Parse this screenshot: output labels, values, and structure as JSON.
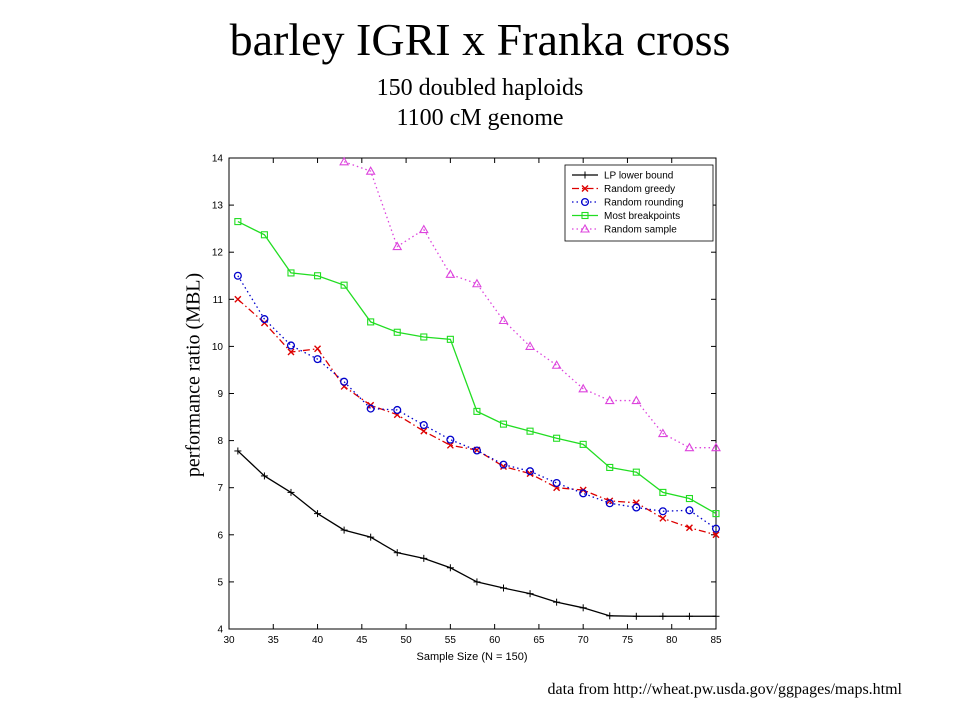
{
  "chart_data": {
    "type": "line",
    "title": "barley IGRI x Franka cross",
    "subtitles": [
      "150 doubled haploids",
      "1100 cM genome"
    ],
    "xlabel": "Sample Size (N = 150)",
    "ylabel": "performance ratio (MBL)",
    "xlim": [
      30,
      85
    ],
    "ylim": [
      4,
      14
    ],
    "xticks": [
      30,
      35,
      40,
      45,
      50,
      55,
      60,
      65,
      70,
      75,
      80,
      85
    ],
    "yticks": [
      4,
      5,
      6,
      7,
      8,
      9,
      10,
      11,
      12,
      13,
      14
    ],
    "legend_position": "top-right",
    "grid": false,
    "series": [
      {
        "name": "LP lower bound",
        "color": "#000000",
        "marker": "plus",
        "line_style": "solid",
        "x": [
          31,
          34,
          37,
          40,
          43,
          46,
          49,
          52,
          55,
          58,
          61,
          64,
          67,
          70,
          73,
          76,
          79,
          82,
          85
        ],
        "y": [
          7.78,
          7.25,
          6.9,
          6.45,
          6.1,
          5.95,
          5.62,
          5.5,
          5.3,
          5.0,
          4.87,
          4.75,
          4.57,
          4.45,
          4.28,
          4.27,
          4.27,
          4.27,
          4.27
        ]
      },
      {
        "name": "Random greedy",
        "color": "#dd0000",
        "marker": "x",
        "line_style": "dashdot",
        "x": [
          31,
          34,
          37,
          40,
          43,
          46,
          49,
          52,
          55,
          58,
          61,
          64,
          67,
          70,
          73,
          76,
          79,
          82,
          85
        ],
        "y": [
          11.0,
          10.5,
          9.88,
          9.95,
          9.15,
          8.75,
          8.55,
          8.2,
          7.9,
          7.8,
          7.45,
          7.3,
          7.0,
          6.95,
          6.72,
          6.68,
          6.35,
          6.15,
          6.0
        ]
      },
      {
        "name": "Random rounding",
        "color": "#0000cc",
        "marker": "circle",
        "line_style": "dotted",
        "x": [
          31,
          34,
          37,
          40,
          43,
          46,
          49,
          52,
          55,
          58,
          61,
          64,
          67,
          70,
          73,
          76,
          79,
          82,
          85
        ],
        "y": [
          11.5,
          10.58,
          10.02,
          9.73,
          9.25,
          8.68,
          8.65,
          8.33,
          8.02,
          7.79,
          7.49,
          7.35,
          7.1,
          6.88,
          6.67,
          6.58,
          6.5,
          6.52,
          6.13
        ]
      },
      {
        "name": "Most breakpoints",
        "color": "#22dd22",
        "marker": "square",
        "line_style": "solid",
        "x": [
          31,
          34,
          37,
          40,
          43,
          46,
          49,
          52,
          55,
          58,
          61,
          64,
          67,
          70,
          73,
          76,
          79,
          82,
          85
        ],
        "y": [
          12.65,
          12.37,
          11.56,
          11.5,
          11.3,
          10.52,
          10.3,
          10.2,
          10.15,
          8.62,
          8.35,
          8.2,
          8.05,
          7.92,
          7.43,
          7.33,
          6.9,
          6.77,
          6.45
        ]
      },
      {
        "name": "Random sample",
        "color": "#dd44dd",
        "marker": "triangle",
        "line_style": "dotted",
        "x": [
          43,
          46,
          49,
          52,
          55,
          58,
          61,
          64,
          67,
          70,
          73,
          76,
          79,
          82,
          85
        ],
        "y": [
          13.92,
          13.72,
          12.12,
          12.48,
          11.53,
          11.33,
          10.55,
          10.0,
          9.6,
          9.1,
          8.85,
          8.85,
          8.15,
          7.85,
          7.85
        ]
      }
    ]
  },
  "source_text": "data from http://wheat.pw.usda.gov/ggpages/maps.html"
}
